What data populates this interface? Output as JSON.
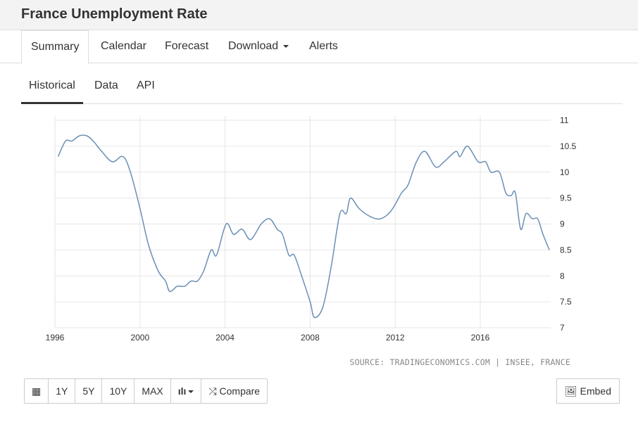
{
  "header": {
    "title": "France Unemployment Rate"
  },
  "tabs": [
    {
      "label": "Summary"
    },
    {
      "label": "Calendar"
    },
    {
      "label": "Forecast"
    },
    {
      "label": "Download"
    },
    {
      "label": "Alerts"
    }
  ],
  "subtabs": [
    {
      "label": "Historical"
    },
    {
      "label": "Data"
    },
    {
      "label": "API"
    }
  ],
  "source": "SOURCE: TRADINGECONOMICS.COM | INSEE, FRANCE",
  "toolbar": {
    "ranges": [
      "1Y",
      "5Y",
      "10Y",
      "MAX"
    ],
    "compare": "Compare",
    "embed": "Embed"
  },
  "chart_data": {
    "type": "line",
    "title": "France Unemployment Rate",
    "xlabel": "",
    "ylabel": "",
    "xlim": [
      1996,
      2019.5
    ],
    "ylim": [
      7,
      11
    ],
    "grid": true,
    "x_ticks": [
      "1996",
      "2000",
      "2004",
      "2008",
      "2012",
      "2016"
    ],
    "y_ticks": [
      "11",
      "10.5",
      "10",
      "9.5",
      "9",
      "8.5",
      "8",
      "7.5",
      "7"
    ],
    "color": "#6b8fb5",
    "series": [
      {
        "name": "Unemployment Rate",
        "points": [
          [
            1996.15,
            10.3
          ],
          [
            1996.5,
            10.6
          ],
          [
            1996.8,
            10.6
          ],
          [
            1997.15,
            10.7
          ],
          [
            1997.5,
            10.7
          ],
          [
            1997.8,
            10.6
          ],
          [
            1998.2,
            10.4
          ],
          [
            1998.7,
            10.2
          ],
          [
            1999.2,
            10.3
          ],
          [
            1999.55,
            10.0
          ],
          [
            2000.0,
            9.3
          ],
          [
            2000.4,
            8.6
          ],
          [
            2000.85,
            8.1
          ],
          [
            2001.2,
            7.9
          ],
          [
            2001.4,
            7.7
          ],
          [
            2001.75,
            7.8
          ],
          [
            2002.1,
            7.8
          ],
          [
            2002.4,
            7.9
          ],
          [
            2002.7,
            7.9
          ],
          [
            2003.0,
            8.1
          ],
          [
            2003.35,
            8.5
          ],
          [
            2003.6,
            8.4
          ],
          [
            2004.05,
            9.0
          ],
          [
            2004.4,
            8.8
          ],
          [
            2004.8,
            8.9
          ],
          [
            2005.2,
            8.7
          ],
          [
            2005.7,
            9.0
          ],
          [
            2006.1,
            9.1
          ],
          [
            2006.45,
            8.9
          ],
          [
            2006.7,
            8.8
          ],
          [
            2007.0,
            8.4
          ],
          [
            2007.25,
            8.4
          ],
          [
            2007.6,
            8.0
          ],
          [
            2008.0,
            7.5
          ],
          [
            2008.2,
            7.2
          ],
          [
            2008.6,
            7.4
          ],
          [
            2009.0,
            8.2
          ],
          [
            2009.4,
            9.2
          ],
          [
            2009.7,
            9.2
          ],
          [
            2009.9,
            9.5
          ],
          [
            2010.3,
            9.3
          ],
          [
            2010.8,
            9.15
          ],
          [
            2011.3,
            9.1
          ],
          [
            2011.8,
            9.25
          ],
          [
            2012.3,
            9.6
          ],
          [
            2012.6,
            9.75
          ],
          [
            2013.0,
            10.2
          ],
          [
            2013.4,
            10.4
          ],
          [
            2013.9,
            10.1
          ],
          [
            2014.3,
            10.2
          ],
          [
            2014.85,
            10.4
          ],
          [
            2015.05,
            10.3
          ],
          [
            2015.4,
            10.5
          ],
          [
            2015.9,
            10.2
          ],
          [
            2016.25,
            10.2
          ],
          [
            2016.5,
            10.0
          ],
          [
            2016.9,
            10.0
          ],
          [
            2017.2,
            9.6
          ],
          [
            2017.45,
            9.55
          ],
          [
            2017.65,
            9.6
          ],
          [
            2017.9,
            8.9
          ],
          [
            2018.15,
            9.2
          ],
          [
            2018.45,
            9.1
          ],
          [
            2018.7,
            9.1
          ],
          [
            2018.95,
            8.8
          ],
          [
            2019.25,
            8.5
          ]
        ]
      }
    ]
  }
}
